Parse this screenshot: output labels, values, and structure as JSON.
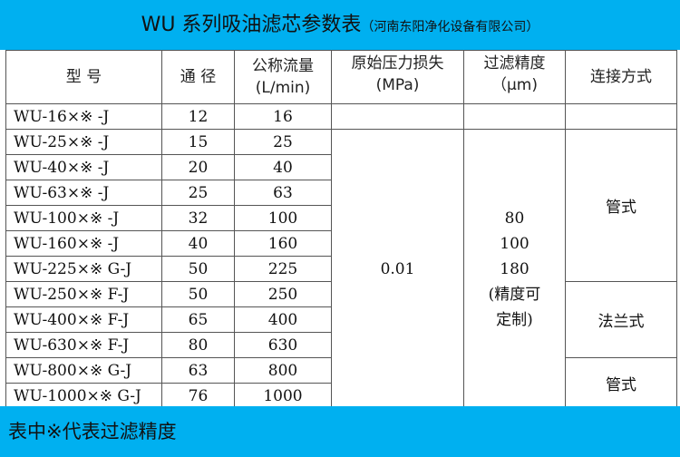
{
  "title": {
    "main": "WU 系列吸油滤芯参数表",
    "company": "（河南东阳净化设备有限公司）"
  },
  "headers": {
    "model": "型 号",
    "diameter": "通 径",
    "flow": "公称流量",
    "flow_unit": "(L/min)",
    "pressure": "原始压力损失",
    "pressure_unit": "(MPa)",
    "precision": "过滤精度",
    "precision_unit": "（μm)",
    "connection": "连接方式"
  },
  "rows": [
    {
      "model": "WU-16×※ -J",
      "diameter": "12",
      "flow": "16"
    },
    {
      "model": "WU-25×※ -J",
      "diameter": "15",
      "flow": "25"
    },
    {
      "model": "WU-40×※ -J",
      "diameter": "20",
      "flow": "40"
    },
    {
      "model": "WU-63×※ -J",
      "diameter": "25",
      "flow": "63"
    },
    {
      "model": "WU-100×※ -J",
      "diameter": "32",
      "flow": "100"
    },
    {
      "model": "WU-160×※ -J",
      "diameter": "40",
      "flow": "160"
    },
    {
      "model": "WU-225×※ G-J",
      "diameter": "50",
      "flow": "225"
    },
    {
      "model": "WU-250×※ F-J",
      "diameter": "50",
      "flow": "250"
    },
    {
      "model": "WU-400×※ F-J",
      "diameter": "65",
      "flow": "400"
    },
    {
      "model": "WU-630×※ F-J",
      "diameter": "80",
      "flow": "630"
    },
    {
      "model": "WU-800×※ G-J",
      "diameter": "63",
      "flow": "800"
    },
    {
      "model": "WU-1000×※ G-J",
      "diameter": "76",
      "flow": "1000"
    }
  ],
  "pressure_loss": "0.01",
  "precision_values": [
    "80",
    "100",
    "180",
    "(精度可",
    "定制)"
  ],
  "connections": [
    "管式",
    "法兰式",
    "管式"
  ],
  "footnote": "表中※代表过滤精度",
  "colors": {
    "band": "#00b0f0"
  }
}
